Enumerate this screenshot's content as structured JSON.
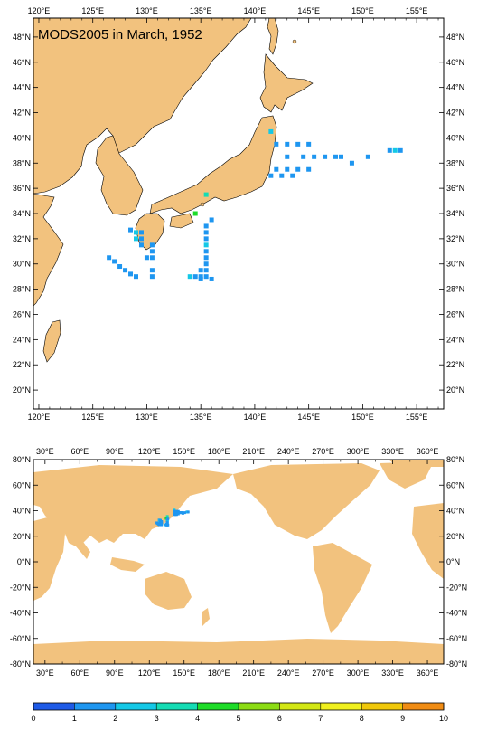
{
  "map_title": "MODS2005 in March, 1952",
  "colors": {
    "land": "#F2C27E",
    "ocean": "#FFFFFF",
    "frame": "#000000"
  },
  "regional_map": {
    "lon_labels": [
      "120°E",
      "125°E",
      "130°E",
      "135°E",
      "140°E",
      "145°E",
      "150°E",
      "155°E"
    ],
    "lat_labels": [
      "48°N",
      "46°N",
      "44°N",
      "42°N",
      "40°N",
      "38°N",
      "36°N",
      "34°N",
      "32°N",
      "30°N",
      "28°N",
      "26°N",
      "24°N",
      "22°N",
      "20°N"
    ]
  },
  "global_map": {
    "lon_labels": [
      "30°E",
      "60°E",
      "90°E",
      "120°E",
      "150°E",
      "180°E",
      "210°E",
      "240°E",
      "270°E",
      "300°E",
      "330°E",
      "360°E"
    ],
    "lat_labels": [
      "80°N",
      "60°N",
      "40°N",
      "20°N",
      "0°N",
      "-20°N",
      "-40°N",
      "-60°N",
      "-80°N"
    ]
  },
  "colorbar": {
    "labels": [
      "0",
      "1",
      "2",
      "3",
      "4",
      "5",
      "6",
      "7",
      "8",
      "9",
      "10"
    ],
    "colors": [
      "#1E5AE6",
      "#1E96F0",
      "#14C8E6",
      "#14DCB4",
      "#1EDC28",
      "#8CDC14",
      "#D2E614",
      "#F0F01E",
      "#F0C80A",
      "#F08C14"
    ]
  },
  "observations": [
    {
      "lon": 141.5,
      "lat": 40.5,
      "count": 2
    },
    {
      "lon": 142.0,
      "lat": 39.5,
      "count": 1
    },
    {
      "lon": 143.0,
      "lat": 39.5,
      "count": 1
    },
    {
      "lon": 144.0,
      "lat": 39.5,
      "count": 1
    },
    {
      "lon": 145.0,
      "lat": 39.5,
      "count": 1
    },
    {
      "lon": 143.0,
      "lat": 38.5,
      "count": 1
    },
    {
      "lon": 144.5,
      "lat": 38.5,
      "count": 1
    },
    {
      "lon": 145.5,
      "lat": 38.5,
      "count": 1
    },
    {
      "lon": 146.5,
      "lat": 38.5,
      "count": 1
    },
    {
      "lon": 147.5,
      "lat": 38.5,
      "count": 1
    },
    {
      "lon": 148.0,
      "lat": 38.5,
      "count": 1
    },
    {
      "lon": 149.0,
      "lat": 38.0,
      "count": 1
    },
    {
      "lon": 150.5,
      "lat": 38.5,
      "count": 1
    },
    {
      "lon": 152.5,
      "lat": 39.0,
      "count": 1
    },
    {
      "lon": 153.0,
      "lat": 39.0,
      "count": 2
    },
    {
      "lon": 153.5,
      "lat": 39.0,
      "count": 1
    },
    {
      "lon": 142.0,
      "lat": 37.5,
      "count": 1
    },
    {
      "lon": 143.0,
      "lat": 37.5,
      "count": 1
    },
    {
      "lon": 144.0,
      "lat": 37.5,
      "count": 1
    },
    {
      "lon": 145.0,
      "lat": 37.5,
      "count": 1
    },
    {
      "lon": 141.5,
      "lat": 37.0,
      "count": 1
    },
    {
      "lon": 142.5,
      "lat": 37.0,
      "count": 1
    },
    {
      "lon": 143.5,
      "lat": 37.0,
      "count": 1
    },
    {
      "lon": 135.5,
      "lat": 35.5,
      "count": 3
    },
    {
      "lon": 134.5,
      "lat": 34.0,
      "count": 4
    },
    {
      "lon": 136.0,
      "lat": 33.5,
      "count": 1
    },
    {
      "lon": 135.5,
      "lat": 33.0,
      "count": 1
    },
    {
      "lon": 135.5,
      "lat": 32.5,
      "count": 1
    },
    {
      "lon": 135.5,
      "lat": 32.0,
      "count": 1
    },
    {
      "lon": 135.5,
      "lat": 31.5,
      "count": 2
    },
    {
      "lon": 135.5,
      "lat": 31.0,
      "count": 1
    },
    {
      "lon": 135.5,
      "lat": 30.5,
      "count": 1
    },
    {
      "lon": 135.5,
      "lat": 30.0,
      "count": 1
    },
    {
      "lon": 135.0,
      "lat": 29.5,
      "count": 1
    },
    {
      "lon": 135.5,
      "lat": 29.5,
      "count": 1
    },
    {
      "lon": 134.0,
      "lat": 29.0,
      "count": 2
    },
    {
      "lon": 134.5,
      "lat": 29.0,
      "count": 1
    },
    {
      "lon": 135.0,
      "lat": 29.0,
      "count": 1
    },
    {
      "lon": 135.5,
      "lat": 29.0,
      "count": 1
    },
    {
      "lon": 135.0,
      "lat": 28.8,
      "count": 1
    },
    {
      "lon": 136.0,
      "lat": 28.8,
      "count": 1
    },
    {
      "lon": 128.5,
      "lat": 32.7,
      "count": 1
    },
    {
      "lon": 129.0,
      "lat": 32.5,
      "count": 2
    },
    {
      "lon": 129.5,
      "lat": 32.5,
      "count": 1
    },
    {
      "lon": 129.0,
      "lat": 32.0,
      "count": 2
    },
    {
      "lon": 129.5,
      "lat": 32.0,
      "count": 1
    },
    {
      "lon": 129.5,
      "lat": 31.5,
      "count": 1
    },
    {
      "lon": 130.5,
      "lat": 31.5,
      "count": 1
    },
    {
      "lon": 130.5,
      "lat": 31.0,
      "count": 1
    },
    {
      "lon": 130.0,
      "lat": 30.5,
      "count": 1
    },
    {
      "lon": 130.5,
      "lat": 30.5,
      "count": 1
    },
    {
      "lon": 130.5,
      "lat": 29.5,
      "count": 1
    },
    {
      "lon": 130.5,
      "lat": 29.0,
      "count": 1
    },
    {
      "lon": 126.5,
      "lat": 30.5,
      "count": 1
    },
    {
      "lon": 127.0,
      "lat": 30.2,
      "count": 1
    },
    {
      "lon": 127.5,
      "lat": 29.8,
      "count": 1
    },
    {
      "lon": 128.0,
      "lat": 29.5,
      "count": 1
    },
    {
      "lon": 128.5,
      "lat": 29.2,
      "count": 1
    },
    {
      "lon": 129.0,
      "lat": 29.0,
      "count": 1
    }
  ]
}
